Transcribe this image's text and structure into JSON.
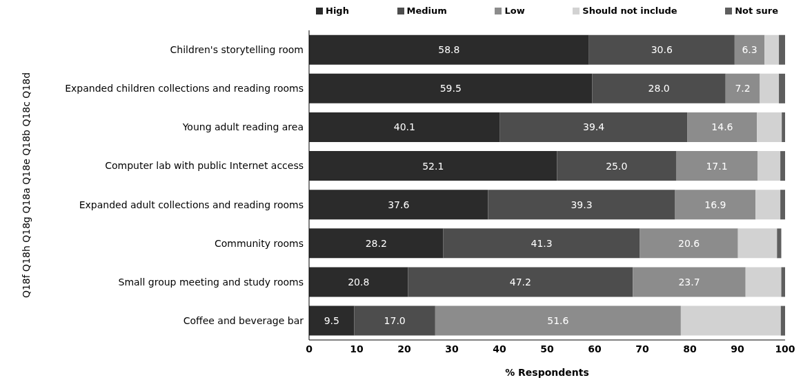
{
  "chart_data": {
    "type": "bar",
    "orientation": "horizontal",
    "stacked": true,
    "categories": [
      "Children's storytelling room",
      "Expanded children collections and reading rooms",
      "Young adult reading area",
      "Computer lab with public Internet access",
      "Expanded adult collections and reading rooms",
      "Community rooms",
      "Small group meeting and study rooms",
      "Coffee and beverage bar"
    ],
    "series": [
      {
        "name": "High",
        "color": "#2b2b2b",
        "values": [
          58.8,
          59.5,
          40.1,
          52.1,
          37.6,
          28.2,
          20.8,
          9.5
        ],
        "value_labels": [
          "58.8",
          "59.5",
          "40.1",
          "52.1",
          "37.6",
          "28.2",
          "20.8",
          "9.5"
        ]
      },
      {
        "name": "Medium",
        "color": "#4d4d4d",
        "values": [
          30.6,
          28.0,
          39.4,
          25.0,
          39.3,
          41.3,
          47.2,
          17.0
        ],
        "value_labels": [
          "30.6",
          "28.0",
          "39.4",
          "25.0",
          "39.3",
          "41.3",
          "47.2",
          "17.0"
        ]
      },
      {
        "name": "Low",
        "color": "#8c8c8c",
        "values": [
          6.3,
          7.2,
          14.6,
          17.1,
          16.9,
          20.6,
          23.7,
          51.6
        ],
        "value_labels": [
          "6.3",
          "7.2",
          "14.6",
          "17.1",
          "16.9",
          "20.6",
          "23.7",
          "51.6"
        ]
      },
      {
        "name": "Should not include",
        "color": "#d2d2d2",
        "values": [
          3.0,
          4.0,
          5.2,
          4.8,
          5.2,
          8.2,
          7.5,
          21.0
        ]
      },
      {
        "name": "Not sure",
        "color": "#5e5e5e",
        "values": [
          1.3,
          1.3,
          0.7,
          1.0,
          1.0,
          0.9,
          0.8,
          0.9
        ]
      }
    ],
    "xlabel": "% Respondents",
    "ylabel": "Q18f  Q18h  Q18g  Q18a  Q18e  Q18b  Q18c  Q18d",
    "xlim": [
      0,
      100
    ],
    "xticks": [
      0,
      10,
      20,
      30,
      40,
      50,
      60,
      70,
      80,
      90,
      100
    ],
    "legend": "top",
    "grid": false
  }
}
